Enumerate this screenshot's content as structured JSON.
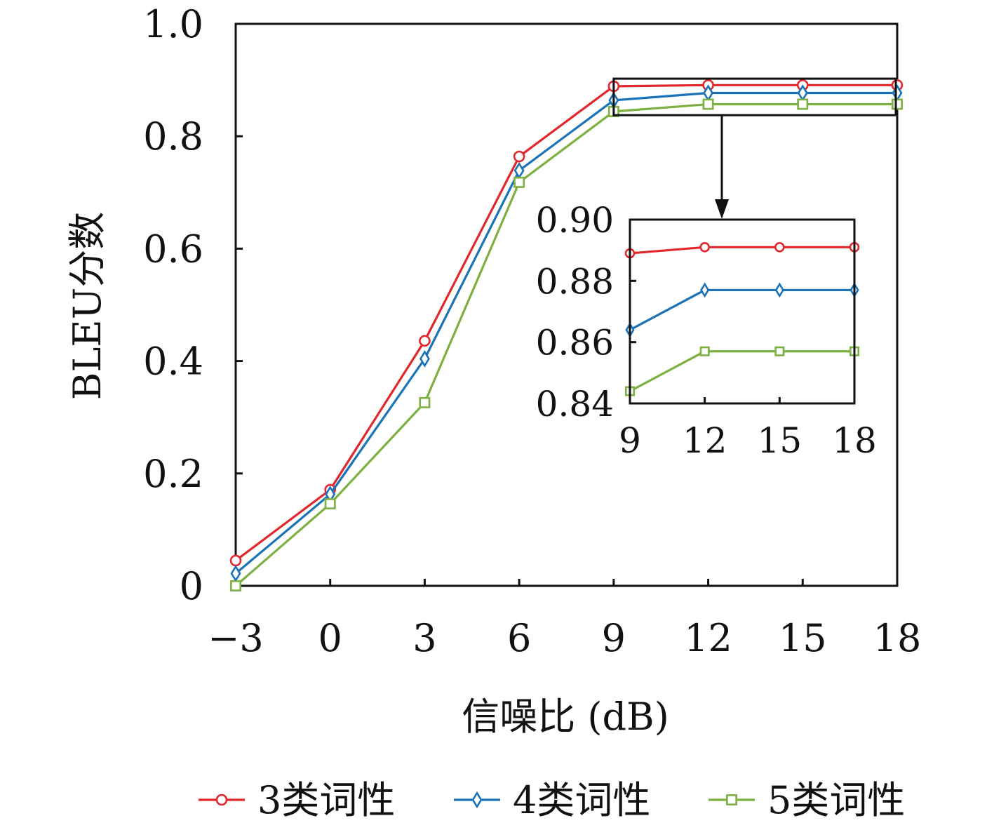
{
  "chart_data": {
    "type": "line",
    "xlabel": "信噪比 (dB)",
    "ylabel": "BLEU分数",
    "x": [
      -3,
      0,
      3,
      6,
      9,
      12,
      15,
      18
    ],
    "x_tick_labels": [
      "−3",
      "0",
      "3",
      "6",
      "9",
      "12",
      "15",
      "18"
    ],
    "xlim": [
      -3,
      18
    ],
    "ylim": [
      0,
      1.0
    ],
    "y_ticks": [
      0,
      0.2,
      0.4,
      0.6,
      0.8,
      1.0
    ],
    "y_tick_labels": [
      "0",
      "0.2",
      "0.4",
      "0.6",
      "0.8",
      "1.0"
    ],
    "grid": false,
    "legend_position": "bottom",
    "series": [
      {
        "name": "3类词性",
        "color": "#e3262b",
        "marker": "circle",
        "values": [
          0.045,
          0.171,
          0.436,
          0.764,
          0.889,
          0.891,
          0.891,
          0.891
        ]
      },
      {
        "name": "4类词性",
        "color": "#1a73b8",
        "marker": "diamond",
        "values": [
          0.022,
          0.163,
          0.404,
          0.739,
          0.864,
          0.877,
          0.877,
          0.877
        ]
      },
      {
        "name": "5类词性",
        "color": "#7cb040",
        "marker": "square",
        "values": [
          0.0,
          0.146,
          0.326,
          0.718,
          0.844,
          0.857,
          0.857,
          0.857
        ]
      }
    ],
    "inset": {
      "x": [
        9,
        12,
        15,
        18
      ],
      "x_tick_labels": [
        "9",
        "12",
        "15",
        "18"
      ],
      "xlim": [
        9,
        18
      ],
      "ylim": [
        0.84,
        0.9
      ],
      "y_ticks": [
        0.84,
        0.86,
        0.88,
        0.9
      ],
      "y_tick_labels": [
        "0.84",
        "0.86",
        "0.88",
        "0.90"
      ],
      "series": [
        {
          "name": "3类词性",
          "values": [
            0.889,
            0.891,
            0.891,
            0.891
          ]
        },
        {
          "name": "4类词性",
          "values": [
            0.864,
            0.877,
            0.877,
            0.877
          ]
        },
        {
          "name": "5类词性",
          "values": [
            0.844,
            0.857,
            0.857,
            0.857
          ]
        }
      ]
    }
  }
}
